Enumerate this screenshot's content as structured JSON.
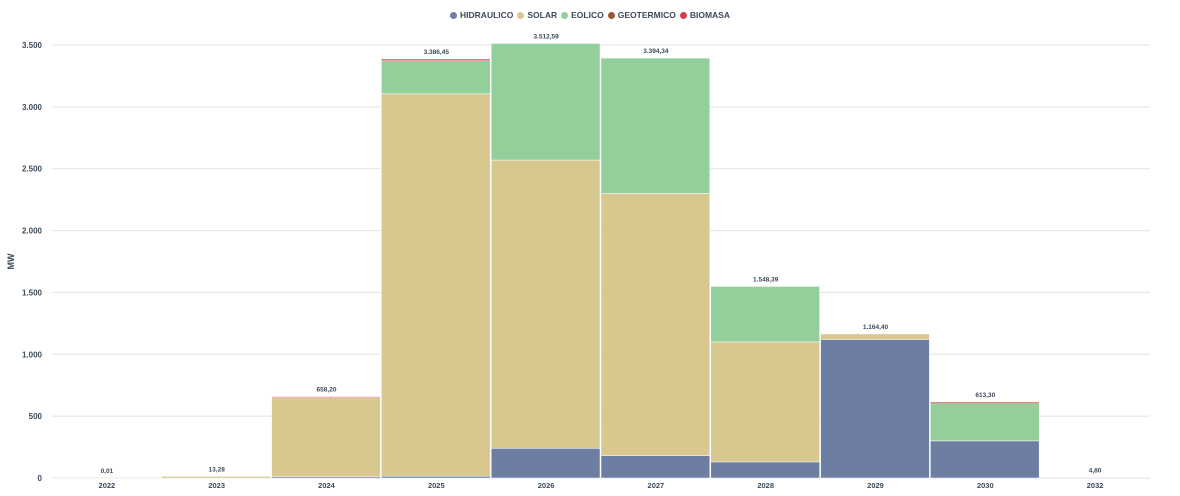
{
  "chart_data": {
    "type": "bar",
    "stacked": true,
    "title": "",
    "xlabel": "",
    "ylabel": "MW",
    "ylim": [
      0,
      3500
    ],
    "yticks": [
      0,
      500,
      1000,
      1500,
      2000,
      2500,
      3000,
      3500
    ],
    "ytick_labels": [
      "0",
      "500",
      "1.000",
      "1.500",
      "2.000",
      "2.500",
      "3.000",
      "3.500"
    ],
    "grid": true,
    "legend_position": "top-center",
    "categories": [
      "2022",
      "2023",
      "2024",
      "2025",
      "2026",
      "2027",
      "2028",
      "2029",
      "2030",
      "2032"
    ],
    "totals": [
      0.01,
      13.28,
      658.2,
      3386.45,
      3512.59,
      3394.34,
      1548.39,
      1164.4,
      613.3,
      4.8
    ],
    "total_labels": [
      "0,01",
      "13,28",
      "658,20",
      "3.386,45",
      "3.512,59",
      "3.394,34",
      "1.548,39",
      "1.164,40",
      "613,30",
      "4,80"
    ],
    "series": [
      {
        "name": "HIDRAULICO",
        "color": "#6e7ea3",
        "values": [
          0,
          0,
          10,
          15,
          240,
          180,
          130,
          1120,
          300,
          4.8
        ]
      },
      {
        "name": "SOLAR",
        "color": "#d8c88f",
        "values": [
          0.01,
          13.28,
          640,
          3090,
          2330,
          2120,
          970,
          44.4,
          0,
          0
        ]
      },
      {
        "name": "EOLICO",
        "color": "#93cf9a",
        "values": [
          0,
          0,
          0,
          268,
          942.59,
          1094.34,
          448.39,
          0,
          300,
          0
        ]
      },
      {
        "name": "GEOTERMICO",
        "color": "#a0522d",
        "values": [
          0,
          0,
          0,
          0,
          0,
          0,
          0,
          0,
          13.3,
          0
        ]
      },
      {
        "name": "BIOMASA",
        "color": "#d0404a",
        "values": [
          0,
          0,
          8.2,
          13.45,
          0,
          0,
          0,
          0,
          0,
          0
        ]
      }
    ]
  }
}
